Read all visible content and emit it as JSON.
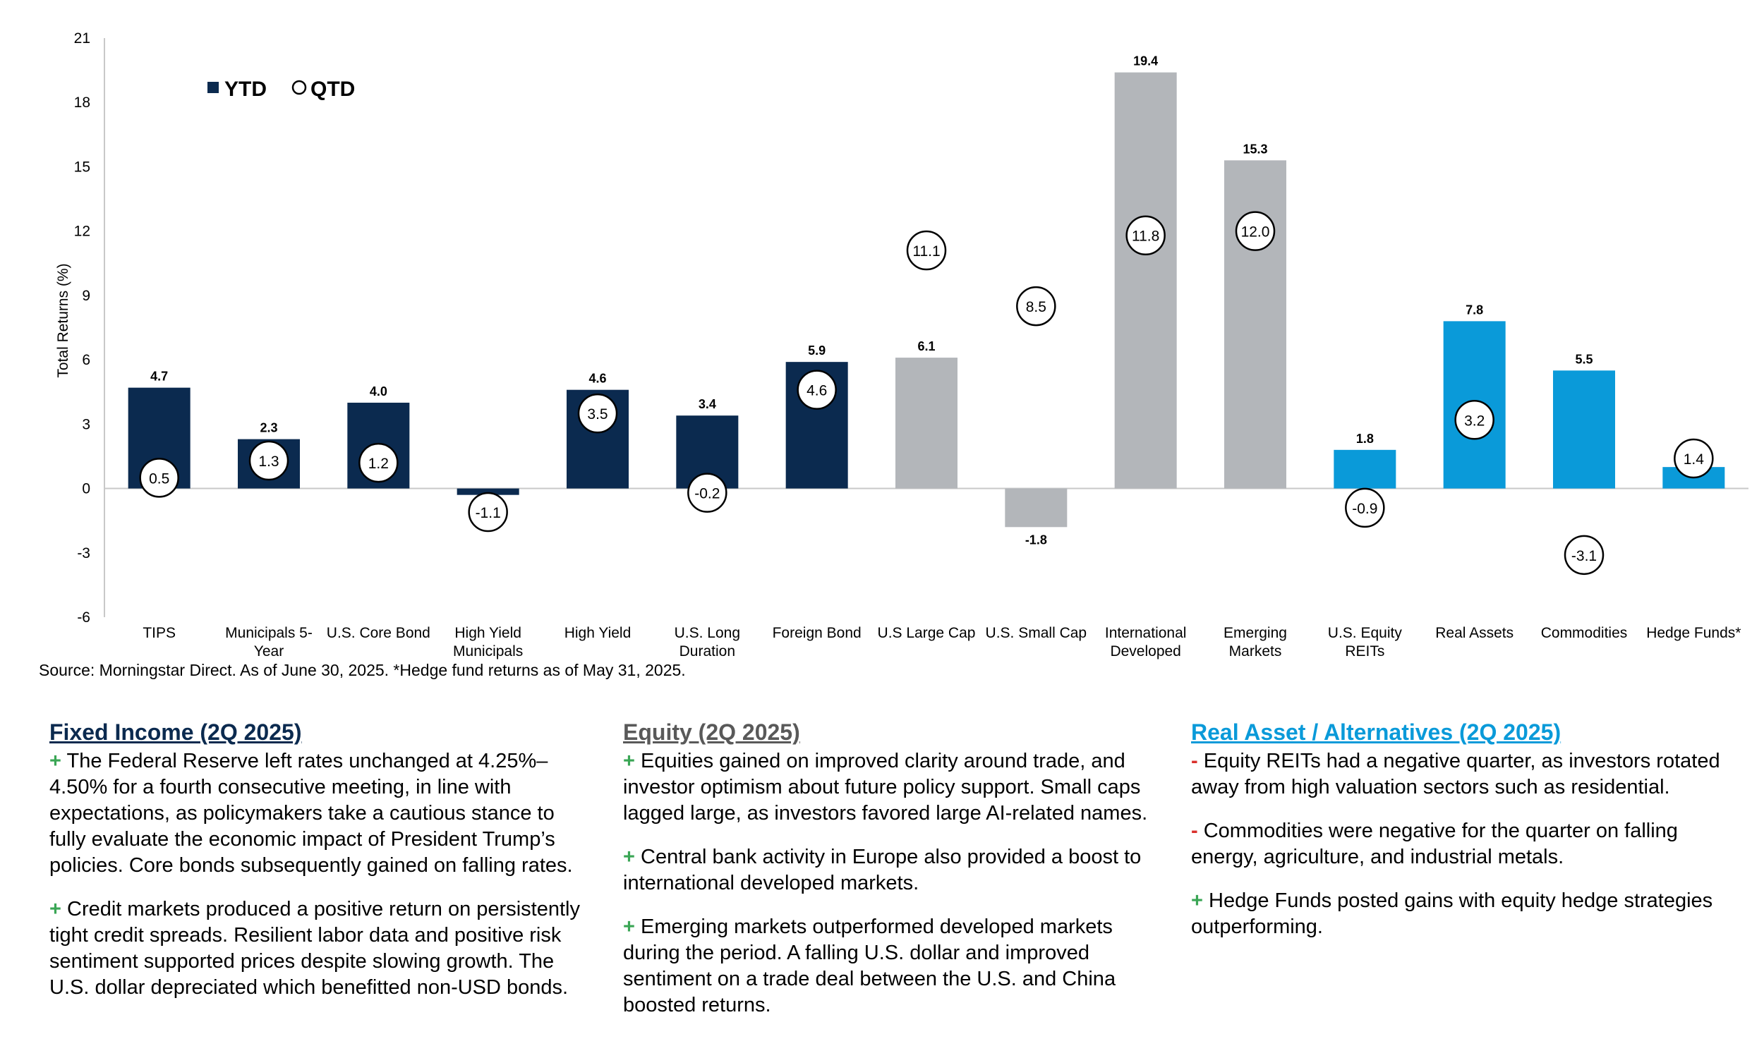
{
  "chart_data": {
    "type": "bar",
    "title": "",
    "ylabel": "Total Returns (%)",
    "xlabel": "",
    "ylim": [
      -6,
      21
    ],
    "yticks": [
      -6,
      -3,
      0,
      3,
      6,
      9,
      12,
      15,
      18,
      21
    ],
    "legend": {
      "position": "top-left",
      "ytd_label": "YTD",
      "qtd_label": "QTD"
    },
    "categories": [
      {
        "name": [
          "TIPS"
        ],
        "group": "fixed"
      },
      {
        "name": [
          "Municipals 5-",
          "Year"
        ],
        "group": "fixed"
      },
      {
        "name": [
          "U.S. Core Bond"
        ],
        "group": "fixed"
      },
      {
        "name": [
          "High Yield",
          "Municipals"
        ],
        "group": "fixed"
      },
      {
        "name": [
          "High Yield"
        ],
        "group": "fixed"
      },
      {
        "name": [
          "U.S. Long",
          "Duration"
        ],
        "group": "fixed"
      },
      {
        "name": [
          "Foreign Bond"
        ],
        "group": "fixed"
      },
      {
        "name": [
          "U.S Large Cap"
        ],
        "group": "equity"
      },
      {
        "name": [
          "U.S. Small Cap"
        ],
        "group": "equity"
      },
      {
        "name": [
          "International",
          "Developed"
        ],
        "group": "equity"
      },
      {
        "name": [
          "Emerging",
          "Markets"
        ],
        "group": "equity"
      },
      {
        "name": [
          "U.S. Equity",
          "REITs"
        ],
        "group": "real"
      },
      {
        "name": [
          "Real Assets"
        ],
        "group": "real"
      },
      {
        "name": [
          "Commodities"
        ],
        "group": "real"
      },
      {
        "name": [
          "Hedge Funds*"
        ],
        "group": "real"
      }
    ],
    "series": [
      {
        "name": "YTD",
        "values": [
          4.7,
          2.3,
          4.0,
          -0.3,
          4.6,
          3.4,
          5.9,
          6.1,
          -1.8,
          19.4,
          15.3,
          1.8,
          7.8,
          5.5,
          1.0
        ]
      },
      {
        "name": "QTD",
        "values": [
          0.5,
          1.3,
          1.2,
          -1.1,
          3.5,
          -0.2,
          4.6,
          11.1,
          8.5,
          11.8,
          12.0,
          -0.9,
          3.2,
          -3.1,
          1.4
        ]
      }
    ],
    "group_colors": {
      "fixed": "#0b2a4f",
      "equity": "#b3b6ba",
      "real": "#0a9ad9"
    }
  },
  "source_note": "Source: Morningstar Direct. As of June 30, 2025. *Hedge fund returns as of May 31, 2025.",
  "columns": [
    {
      "title": "Fixed Income (2Q 2025)",
      "title_color": "#0b2a4f",
      "items": [
        {
          "sign": "+",
          "text": "The Federal Reserve left rates unchanged at 4.25%–4.50% for a fourth consecutive meeting, in line with expectations, as policymakers take a cautious stance to fully evaluate the economic impact of President Trump’s policies. Core bonds subsequently gained on falling rates."
        },
        {
          "sign": "+",
          "text": "Credit markets produced a positive return on persistently tight credit spreads. Resilient labor data and positive risk sentiment supported prices despite slowing growth. The U.S. dollar depreciated which benefitted non-USD bonds."
        }
      ]
    },
    {
      "title": "Equity (2Q 2025)",
      "title_color": "#595959",
      "items": [
        {
          "sign": "+",
          "text": "Equities gained on improved clarity around trade, and investor optimism about future policy support. Small caps lagged large, as investors favored large AI-related names."
        },
        {
          "sign": "+",
          "text": "Central bank activity in Europe also provided a boost to international developed markets."
        },
        {
          "sign": "+",
          "text": "Emerging markets outperformed developed markets during the period. A falling U.S. dollar and improved sentiment on a trade deal between the U.S. and China boosted returns."
        }
      ]
    },
    {
      "title": "Real Asset / Alternatives (2Q 2025)",
      "title_color": "#0a9ad9",
      "items": [
        {
          "sign": "-",
          "text": "Equity REITs had a negative quarter, as investors rotated away from high valuation sectors such as residential."
        },
        {
          "sign": "-",
          "text": "Commodities were negative for the quarter on falling energy, agriculture, and industrial metals."
        },
        {
          "sign": "+",
          "text": "Hedge Funds posted gains with equity hedge strategies outperforming."
        }
      ]
    }
  ]
}
